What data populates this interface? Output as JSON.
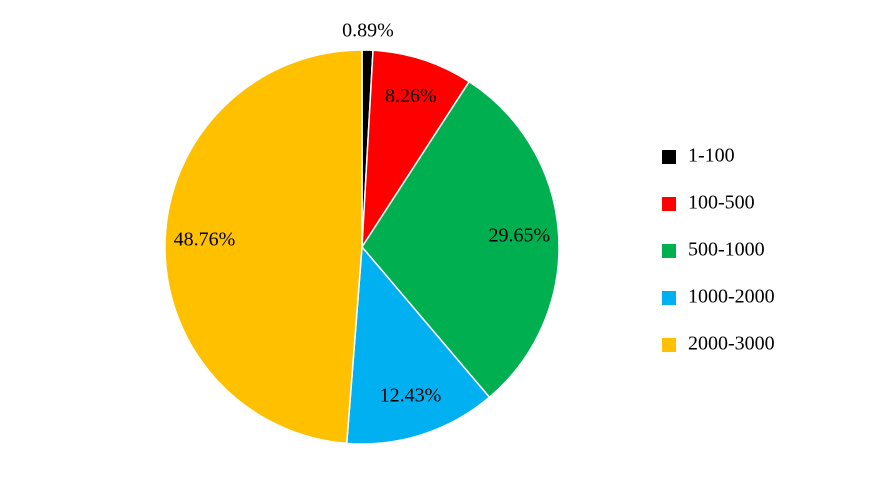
{
  "chart_data": {
    "type": "pie",
    "categories": [
      "1-100",
      "100-500",
      "500-1000",
      "1000-2000",
      "2000-3000"
    ],
    "values": [
      0.89,
      8.26,
      29.65,
      12.43,
      48.76
    ],
    "value_labels": [
      "0.89%",
      "8.26%",
      "29.65%",
      "12.43%",
      "48.76%"
    ],
    "colors": [
      "#000000",
      "#ff0000",
      "#00b050",
      "#00b0f0",
      "#ffc000"
    ],
    "legend": "right"
  }
}
